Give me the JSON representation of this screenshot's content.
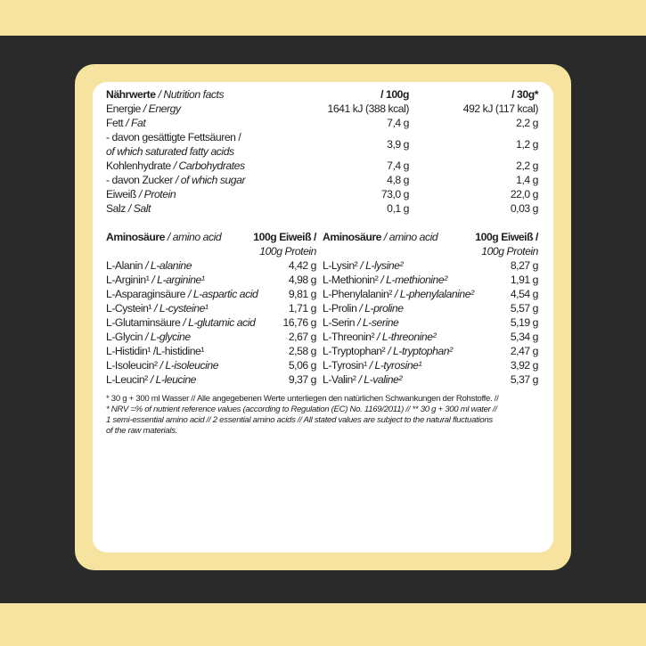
{
  "colors": {
    "background_dark": "#2a2a2a",
    "accent_yellow": "#f6e3a0",
    "card": "#ffffff",
    "text": "#1e1e1e"
  },
  "nutrition": {
    "header": {
      "de": "Nährwerte",
      "en": "/ Nutrition facts",
      "col1": "/ 100g",
      "col2": "/ 30g*"
    },
    "rows": [
      {
        "de": "Energie",
        "en": "/ Energy",
        "v1": "1641 kJ (388 kcal)",
        "v2": "492 kJ (117 kcal)"
      },
      {
        "de": "Fett",
        "en": "/ Fat",
        "v1": "7,4 g",
        "v2": "2,2 g"
      },
      {
        "de": "- davon gesättigte Fettsäuren /",
        "en": "of which saturated fatty acids",
        "v1": "3,9 g",
        "v2": "1,2 g",
        "two_line": true
      },
      {
        "de": "Kohlenhydrate",
        "en": "/ Carbohydrates",
        "v1": "7,4 g",
        "v2": "2,2 g"
      },
      {
        "de": "- davon Zucker",
        "en": "/ of which sugar",
        "v1": "4,8 g",
        "v2": "1,4 g"
      },
      {
        "de": "Eiweiß",
        "en": "/ Protein",
        "v1": "73,0 g",
        "v2": "22,0 g"
      },
      {
        "de": "Salz",
        "en": "/ Salt",
        "v1": "0,1 g",
        "v2": "0,03 g"
      }
    ]
  },
  "amino": {
    "header": {
      "de": "Aminosäure",
      "en": "/ amino acid",
      "unit1": "100g Eiweiß /",
      "unit2": "100g Protein"
    },
    "left": [
      {
        "de": "L-Alanin",
        "en": "/ L-alanine",
        "v": "4,42 g"
      },
      {
        "de": "L-Arginin¹",
        "en": "/ L-arginine¹",
        "v": "4,98 g"
      },
      {
        "de": "L-Asparaginsäure",
        "en": "/ L-aspartic acid",
        "v": "9,81 g"
      },
      {
        "de": "L-Cystein¹",
        "en": "/ L-cysteine¹",
        "v": "1,71 g"
      },
      {
        "de": "L-Glutaminsäure",
        "en": "/ L-glutamic acid",
        "v": "16,76 g"
      },
      {
        "de": "L-Glycin",
        "en": "/ L-glycine",
        "v": "2,67 g"
      },
      {
        "de": "L-Histidin¹",
        "en": "/L-histidine¹",
        "v": "2,58 g",
        "plain": true
      },
      {
        "de": "L-Isoleucin²",
        "en": "/ L-isoleucine",
        "v": "5,06 g"
      },
      {
        "de": "L-Leucin²",
        "en": "/ L-leucine",
        "v": "9,37 g"
      }
    ],
    "right": [
      {
        "de": "L-Lysin²",
        "en": "/ L-lysine²",
        "v": "8,27 g"
      },
      {
        "de": "L-Methionin²",
        "en": "/ L-methionine²",
        "v": "1,91 g"
      },
      {
        "de": "L-Phenylalanin²",
        "en": "/ L-phenylalanine²",
        "v": "4,54 g"
      },
      {
        "de": "L-Prolin",
        "en": "/ L-proline",
        "v": "5,57 g"
      },
      {
        "de": "L-Serin",
        "en": "/ L-serine",
        "v": "5,19 g"
      },
      {
        "de": "L-Threonin²",
        "en": "/ L-threonine²",
        "v": "5,34 g"
      },
      {
        "de": "L-Tryptophan²",
        "en": "/ L-tryptophan²",
        "v": "2,47 g"
      },
      {
        "de": "L-Tyrosin¹",
        "en": "/ L-tyrosine¹",
        "v": "3,92 g"
      },
      {
        "de": "L-Valin²",
        "en": "/ L-valine²",
        "v": "5,37 g"
      }
    ]
  },
  "footnotes": [
    "* 30 g + 300 ml Wasser //  Alle angegebenen Werte unterliegen den natürlichen Schwankungen der Rohstoffe. //",
    "* NRV =% of nutrient reference values (according to Regulation (EC) No. 1169/2011) // ** 30 g + 300 ml water //",
    "1 semi-essential amino acid // 2 essential amino acids // All stated values are subject to the natural fluctuations",
    "of the raw materials."
  ]
}
